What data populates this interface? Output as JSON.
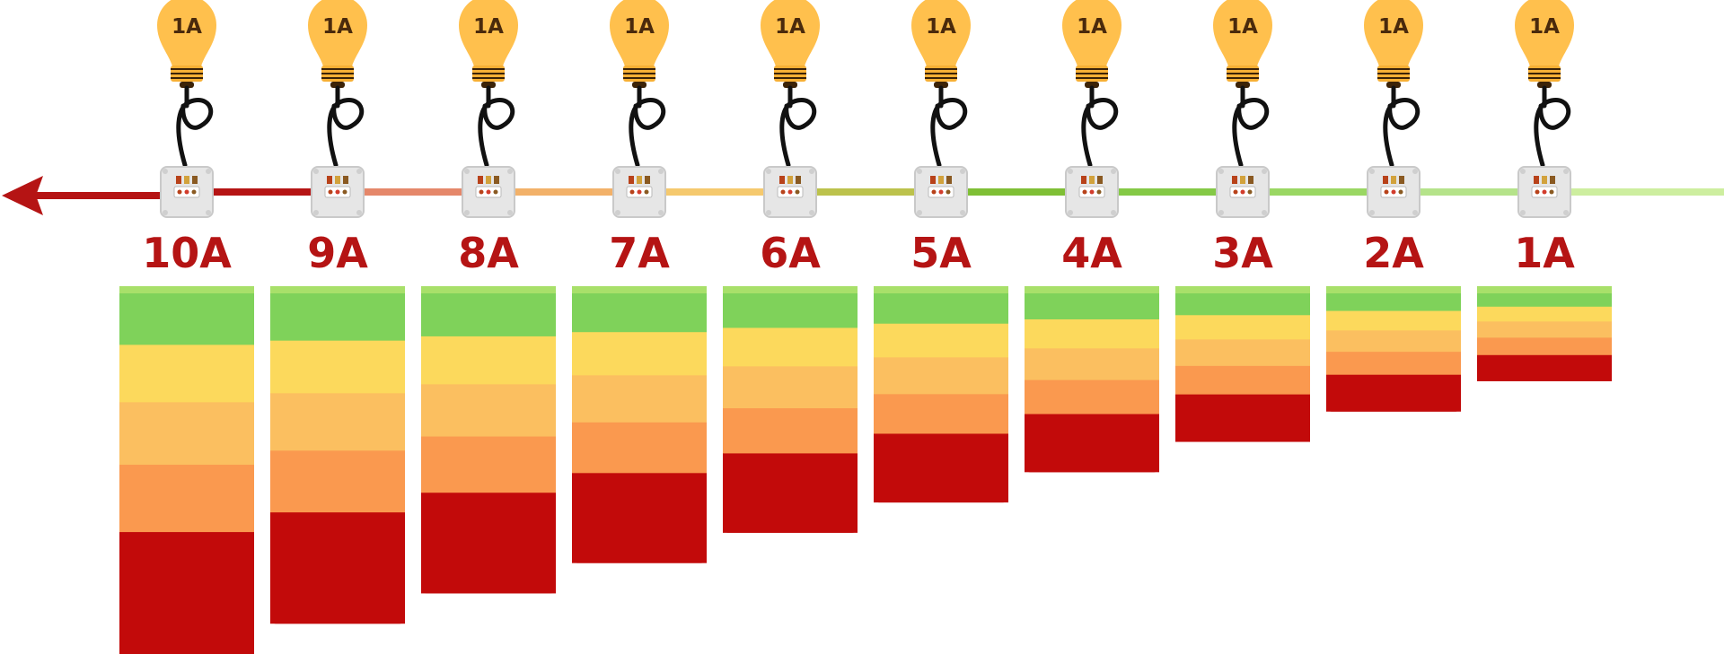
{
  "colors": {
    "arrow": "#b51414",
    "label": "#b51414",
    "bulb": "#ffc04d",
    "bulb_text": "#4a2a0c",
    "band_top": "#a8e06a",
    "band_green": "#7fd25a",
    "band_yellow": "#fcd95c",
    "band_light_orange": "#fbbf60",
    "band_orange": "#fa994f",
    "band_red": "#c20a0a",
    "wire": "#111111",
    "box": "#e6e6e6"
  },
  "wire_gradient": [
    "#b51414",
    "#e5876a",
    "#f2b169",
    "#f5c96e",
    "#bcc24c",
    "#7fbf35",
    "#84c946",
    "#9ad763",
    "#b5e38a",
    "#cdee9f"
  ],
  "stations": [
    {
      "bulb_label": "1A",
      "current_label": "10A",
      "load": 10
    },
    {
      "bulb_label": "1A",
      "current_label": "9A",
      "load": 9
    },
    {
      "bulb_label": "1A",
      "current_label": "8A",
      "load": 8
    },
    {
      "bulb_label": "1A",
      "current_label": "7A",
      "load": 7
    },
    {
      "bulb_label": "1A",
      "current_label": "6A",
      "load": 6
    },
    {
      "bulb_label": "1A",
      "current_label": "5A",
      "load": 5
    },
    {
      "bulb_label": "1A",
      "current_label": "4A",
      "load": 4
    },
    {
      "bulb_label": "1A",
      "current_label": "3A",
      "load": 3
    },
    {
      "bulb_label": "1A",
      "current_label": "2A",
      "load": 2
    },
    {
      "bulb_label": "1A",
      "current_label": "1A",
      "load": 1
    }
  ]
}
